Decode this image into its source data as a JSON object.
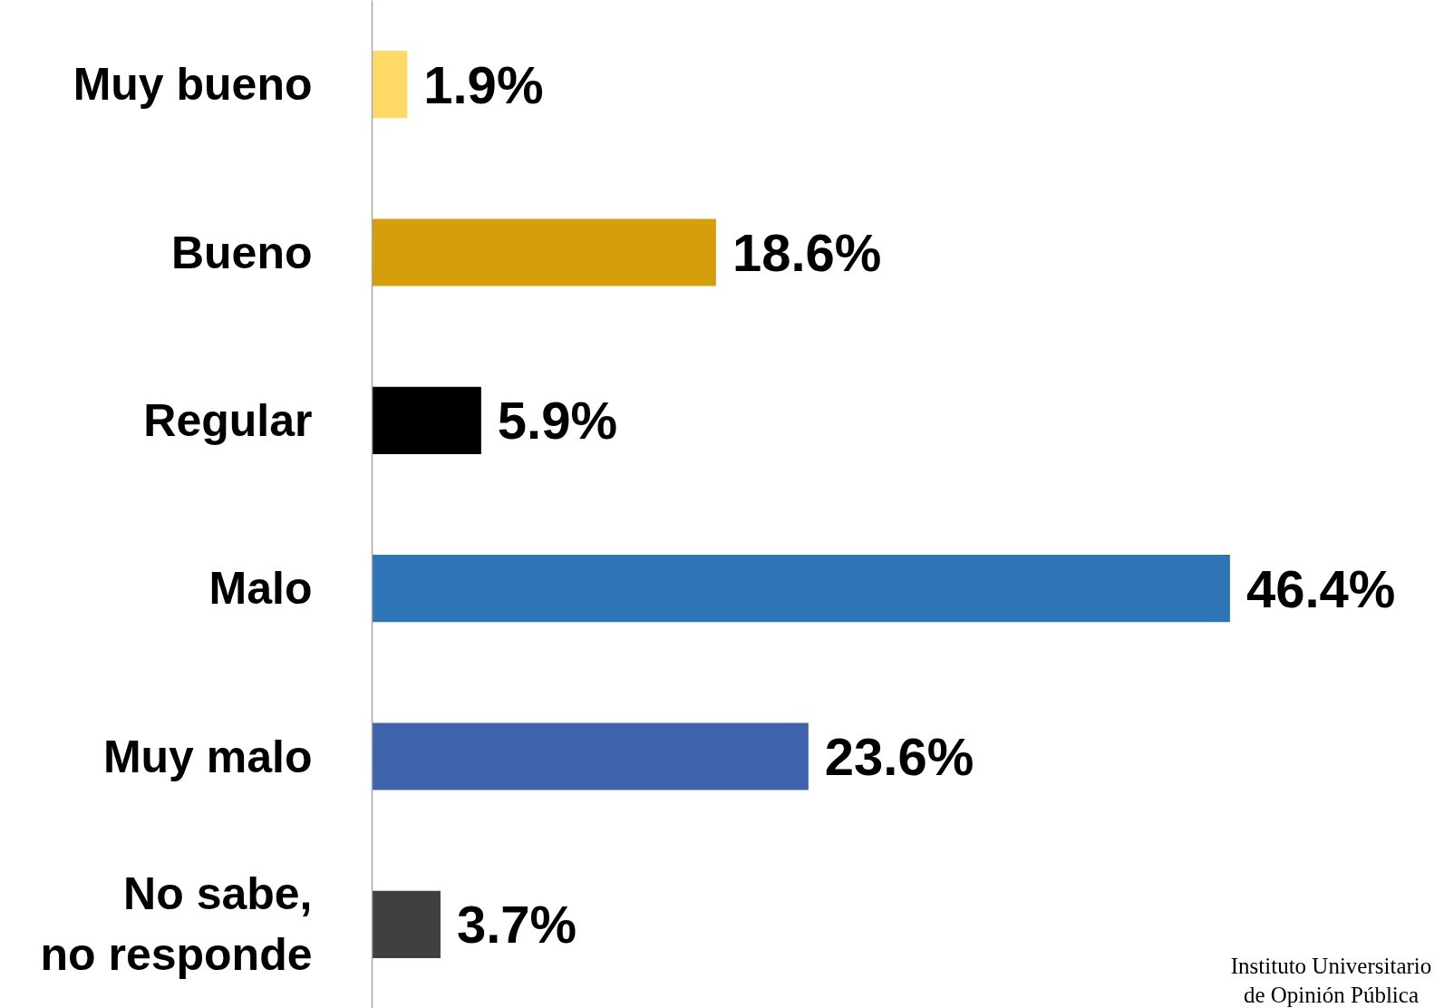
{
  "chart_data": {
    "type": "bar",
    "orientation": "horizontal",
    "categories": [
      "Muy bueno",
      "Bueno",
      "Regular",
      "Malo",
      "Muy malo",
      "No sabe, no responde"
    ],
    "values": [
      1.9,
      18.6,
      5.9,
      46.4,
      23.6,
      3.7
    ],
    "colors": [
      "#ffd966",
      "#d69e0a",
      "#000000",
      "#2e75b6",
      "#3e63ab",
      "#404040"
    ],
    "value_labels": [
      "1.9%",
      "18.6%",
      "5.9%",
      "46.4%",
      "23.6%",
      "3.7%"
    ],
    "tick_labels": "y",
    "annotations": [
      "Instituto Universitario de Opinión Pública"
    ]
  }
}
